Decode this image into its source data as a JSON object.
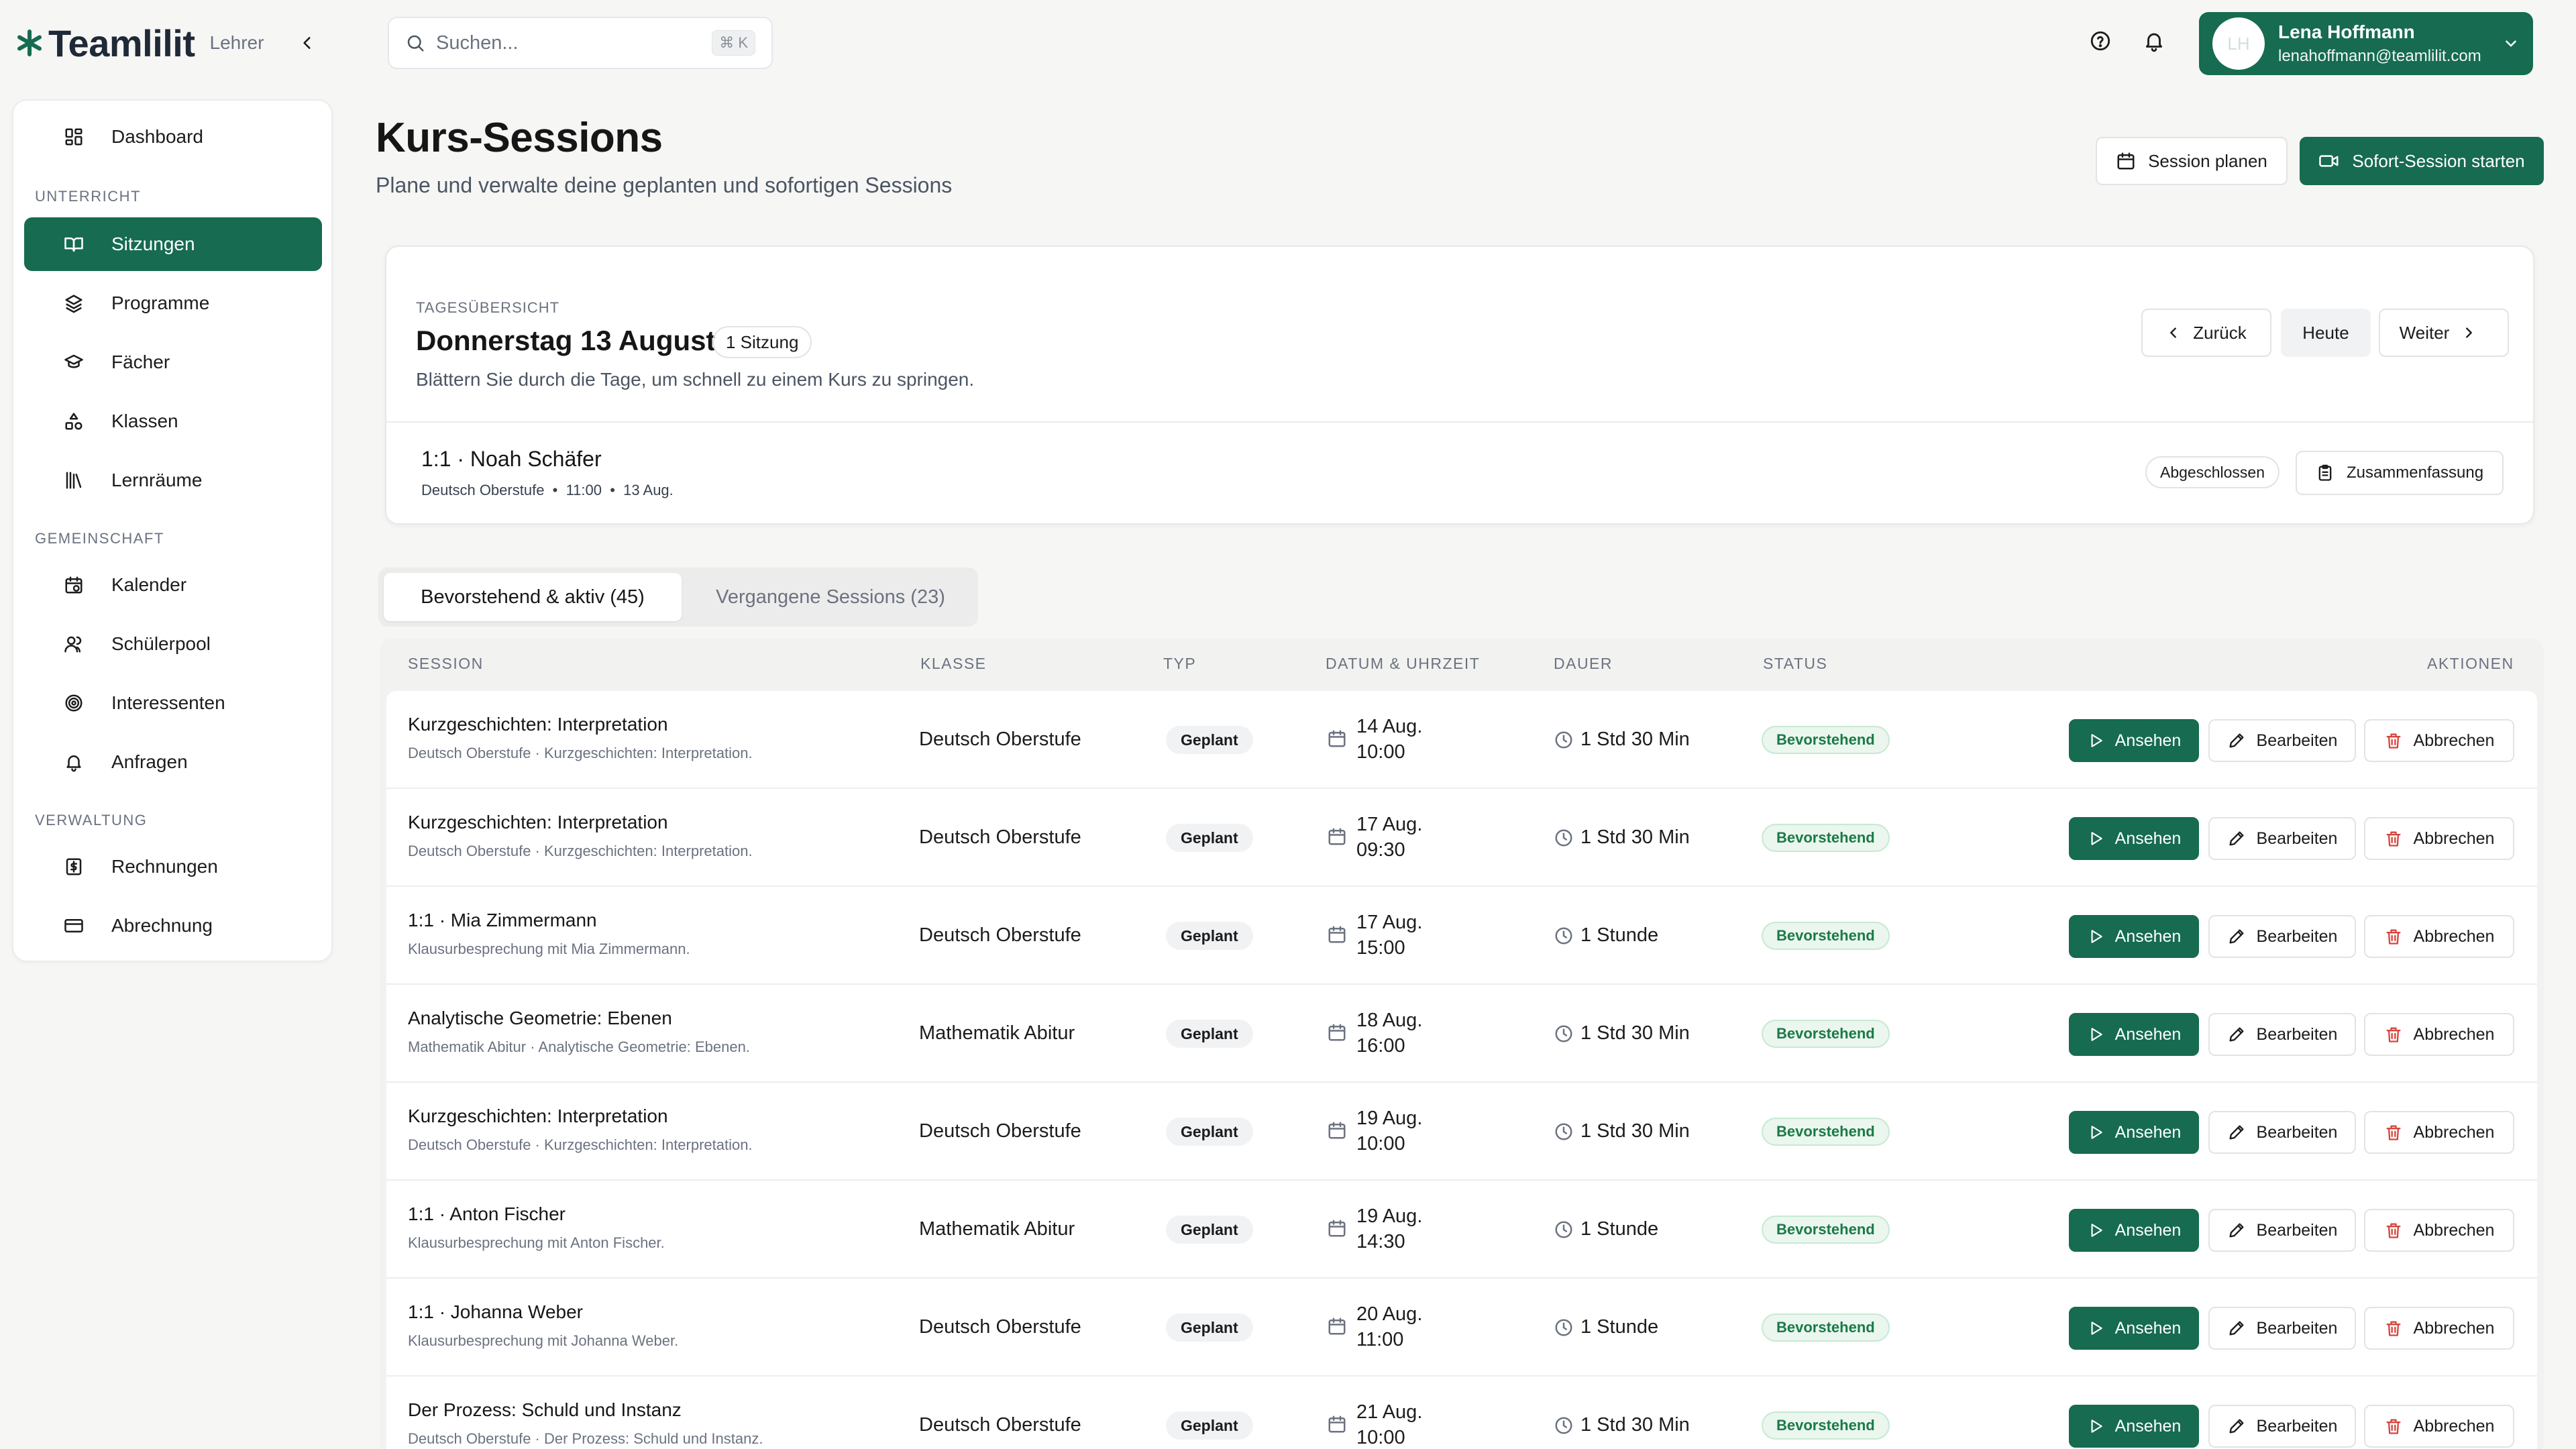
{
  "brand": {
    "name": "Teamlilit",
    "role": "Lehrer"
  },
  "search": {
    "placeholder": "Suchen...",
    "shortcut": "⌘ K"
  },
  "user": {
    "initials": "LH",
    "name": "Lena Hoffmann",
    "email": "lenahoffmann@teamlilit.com"
  },
  "sidebar": {
    "dashboard": "Dashboard",
    "sections": [
      "UNTERRICHT",
      "GEMEINSCHAFT",
      "VERWALTUNG"
    ],
    "items": [
      "Sitzungen",
      "Programme",
      "Fächer",
      "Klassen",
      "Lernräume",
      "Kalender",
      "Schülerpool",
      "Interessenten",
      "Anfragen",
      "Rechnungen",
      "Abrechnung"
    ],
    "active": "Sitzungen"
  },
  "page": {
    "title": "Kurs-Sessions",
    "subtitle": "Plane und verwalte deine geplanten und sofortigen Sessions",
    "plan_button": "Session planen",
    "start_button": "Sofort-Session starten"
  },
  "day": {
    "label": "TAGESÜBERSICHT",
    "title": "Donnerstag 13 August",
    "count": "1 Sitzung",
    "hint": "Blättern Sie durch die Tage, um schnell zu einem Kurs zu springen.",
    "back": "Zurück",
    "today": "Heute",
    "next": "Weiter",
    "session": {
      "title": "1:1 · Noah Schäfer",
      "meta": "Deutsch Oberstufe  •  11:00  •  13 Aug.",
      "status": "Abgeschlossen",
      "summary": "Zusammenfassung"
    }
  },
  "tabs": [
    {
      "label": "Bevorstehend & aktiv (45)",
      "active": true
    },
    {
      "label": "Vergangene Sessions (23)",
      "active": false
    }
  ],
  "table": {
    "headers": [
      "SESSION",
      "KLASSE",
      "TYP",
      "DATUM & UHRZEIT",
      "DAUER",
      "STATUS",
      "AKTIONEN"
    ],
    "actions": {
      "view": "Ansehen",
      "edit": "Bearbeiten",
      "cancel": "Abbrechen"
    },
    "rows": [
      {
        "title": "Kurzgeschichten: Interpretation",
        "sub": "Deutsch Oberstufe · Kurzgeschichten: Interpretation.",
        "class": "Deutsch Oberstufe",
        "type": "Geplant",
        "date": "14 Aug.",
        "time": "10:00",
        "duration": "1 Std 30 Min",
        "status": "Bevorstehend"
      },
      {
        "title": "Kurzgeschichten: Interpretation",
        "sub": "Deutsch Oberstufe · Kurzgeschichten: Interpretation.",
        "class": "Deutsch Oberstufe",
        "type": "Geplant",
        "date": "17 Aug.",
        "time": "09:30",
        "duration": "1 Std 30 Min",
        "status": "Bevorstehend"
      },
      {
        "title": "1:1 · Mia Zimmermann",
        "sub": "Klausurbesprechung mit Mia Zimmermann.",
        "class": "Deutsch Oberstufe",
        "type": "Geplant",
        "date": "17 Aug.",
        "time": "15:00",
        "duration": "1 Stunde",
        "status": "Bevorstehend"
      },
      {
        "title": "Analytische Geometrie: Ebenen",
        "sub": "Mathematik Abitur · Analytische Geometrie: Ebenen.",
        "class": "Mathematik Abitur",
        "type": "Geplant",
        "date": "18 Aug.",
        "time": "16:00",
        "duration": "1 Std 30 Min",
        "status": "Bevorstehend"
      },
      {
        "title": "Kurzgeschichten: Interpretation",
        "sub": "Deutsch Oberstufe · Kurzgeschichten: Interpretation.",
        "class": "Deutsch Oberstufe",
        "type": "Geplant",
        "date": "19 Aug.",
        "time": "10:00",
        "duration": "1 Std 30 Min",
        "status": "Bevorstehend"
      },
      {
        "title": "1:1 · Anton Fischer",
        "sub": "Klausurbesprechung mit Anton Fischer.",
        "class": "Mathematik Abitur",
        "type": "Geplant",
        "date": "19 Aug.",
        "time": "14:30",
        "duration": "1 Stunde",
        "status": "Bevorstehend"
      },
      {
        "title": "1:1 · Johanna Weber",
        "sub": "Klausurbesprechung mit Johanna Weber.",
        "class": "Deutsch Oberstufe",
        "type": "Geplant",
        "date": "20 Aug.",
        "time": "11:00",
        "duration": "1 Stunde",
        "status": "Bevorstehend"
      },
      {
        "title": "Der Prozess: Schuld und Instanz",
        "sub": "Deutsch Oberstufe · Der Prozess: Schuld und Instanz.",
        "class": "Deutsch Oberstufe",
        "type": "Geplant",
        "date": "21 Aug.",
        "time": "10:00",
        "duration": "1 Std 30 Min",
        "status": "Bevorstehend"
      }
    ]
  },
  "colors": {
    "accent": "#166b50",
    "status_bg": "#eaf6ee",
    "status_text": "#1b7a46",
    "cancel_icon": "#d6453d"
  }
}
